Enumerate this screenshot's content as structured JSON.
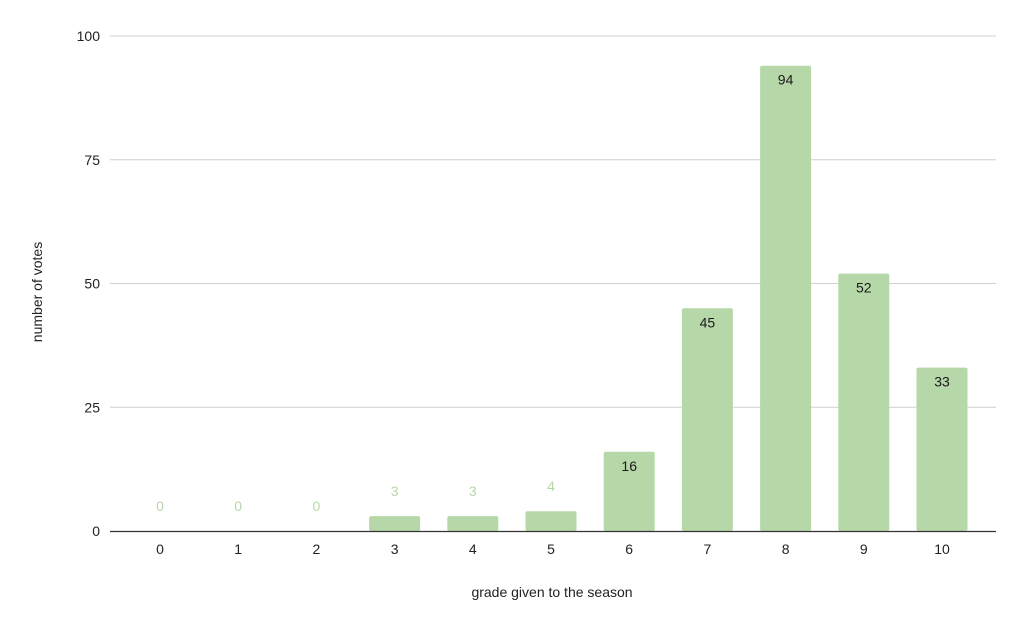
{
  "chart_data": {
    "type": "bar",
    "title": "",
    "xlabel": "grade given to the season",
    "ylabel": "number of votes",
    "categories": [
      "0",
      "1",
      "2",
      "3",
      "4",
      "5",
      "6",
      "7",
      "8",
      "9",
      "10"
    ],
    "values": [
      0,
      0,
      0,
      3,
      3,
      4,
      16,
      45,
      94,
      52,
      33
    ],
    "ylim": [
      0,
      100
    ],
    "yticks": [
      "0",
      "25",
      "50",
      "75",
      "100"
    ],
    "grid": true,
    "legend": "none",
    "data_labels": true
  },
  "colors": {
    "bar": "#b6d7a8",
    "label_inside": "#1a1a1a",
    "label_outside": "#b6d7a8",
    "grid": "#d0d0d0",
    "axis": "#333333"
  }
}
